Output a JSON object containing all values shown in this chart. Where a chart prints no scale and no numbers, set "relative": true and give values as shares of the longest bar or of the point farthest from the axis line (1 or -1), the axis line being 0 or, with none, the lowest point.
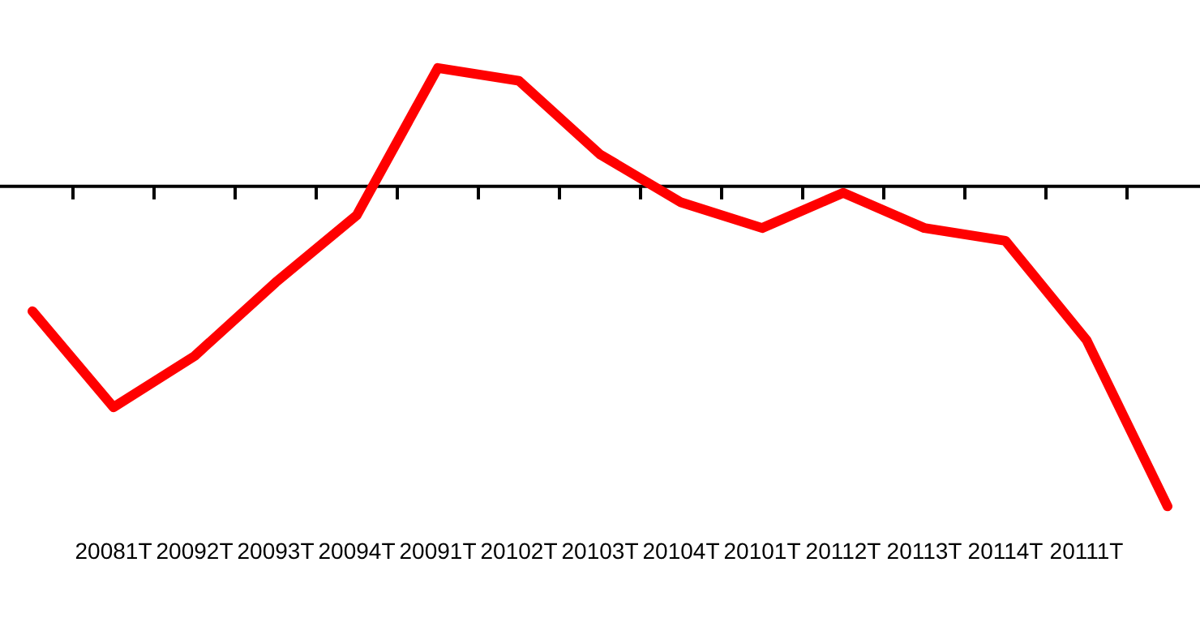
{
  "chart_data": {
    "type": "line",
    "relative": true,
    "categories": [
      null,
      "20081T",
      "20092T",
      "20093T",
      "20094T",
      "20091T",
      "20102T",
      "20103T",
      "20104T",
      "20101T",
      "20112T",
      "20113T",
      "20114T",
      "20111T",
      null
    ],
    "series": [
      {
        "color": "#ff0000",
        "values": [
          -0.39,
          -0.69,
          -0.53,
          -0.3,
          -0.09,
          0.37,
          0.33,
          0.1,
          -0.05,
          -0.13,
          -0.02,
          -0.13,
          -0.17,
          -0.48,
          -1
        ]
      }
    ],
    "marker": "none",
    "legend": false,
    "grid": false
  }
}
